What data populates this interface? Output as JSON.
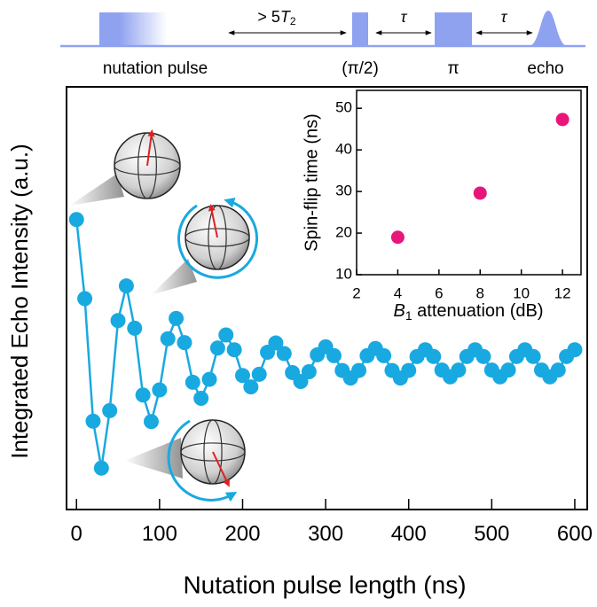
{
  "sequence": {
    "nutation_label": "nutation pulse",
    "wait_prefix": "> 5",
    "wait_symbol": "T",
    "wait_subscript": "2",
    "tau_1": "τ",
    "tau_2": "τ",
    "half_pi_label": "(π/2)",
    "pi_label": "π",
    "echo_label": "echo"
  },
  "chart_data": [
    {
      "type": "line",
      "xlabel": "Nutation pulse length (ns)",
      "ylabel": "Integrated Echo Intensity (a.u.)",
      "x": [
        0,
        10,
        20,
        30,
        40,
        50,
        60,
        70,
        80,
        90,
        100,
        110,
        120,
        130,
        140,
        150,
        160,
        170,
        180,
        190,
        200,
        210,
        220,
        230,
        240,
        250,
        260,
        270,
        280,
        290,
        300,
        310,
        320,
        330,
        340,
        350,
        360,
        370,
        380,
        390,
        400,
        410,
        420,
        430,
        440,
        450,
        460,
        470,
        480,
        490,
        500,
        510,
        520,
        530,
        540,
        550,
        560,
        570,
        580,
        590,
        600
      ],
      "series": [
        {
          "color": "#19a9e1",
          "values": [
            68.6,
            49.9,
            20.9,
            9.8,
            23.4,
            44.7,
            52.9,
            42.9,
            27.1,
            20.8,
            28.3,
            40.4,
            45.2,
            39.5,
            30.1,
            26.3,
            30.8,
            38.2,
            41.3,
            37.8,
            31.7,
            29.0,
            32.0,
            37.2,
            39.4,
            36.9,
            32.4,
            30.3,
            32.6,
            36.6,
            38.5,
            36.4,
            32.9,
            31.1,
            32.9,
            36.4,
            38.1,
            36.4,
            32.9,
            31.1,
            32.9,
            36.2,
            37.8,
            36.2,
            33.0,
            31.4,
            33.0,
            36.2,
            37.8,
            36.2,
            33.0,
            31.4,
            33.0,
            36.2,
            37.8,
            36.2,
            33.0,
            31.4,
            33.0,
            36.2,
            37.8
          ]
        }
      ],
      "xlim": [
        -12,
        615
      ],
      "ylim": [
        0,
        100
      ],
      "xticks": [
        0,
        100,
        200,
        300,
        400,
        500,
        600
      ]
    },
    {
      "type": "scatter",
      "xlabel_symbol": "B",
      "xlabel_subscript": "1",
      "xlabel_rest": " attenuation (dB)",
      "ylabel": "Spin-flip time (ns)",
      "x": [
        4,
        8,
        12
      ],
      "series": [
        {
          "color": "#e8157a",
          "values": [
            19,
            29.6,
            47.3
          ]
        }
      ],
      "xlim": [
        2,
        12.9
      ],
      "ylim": [
        10,
        54.3
      ],
      "xticks": [
        2,
        4,
        6,
        8,
        10,
        12
      ],
      "yticks": [
        10,
        20,
        30,
        40,
        50
      ]
    }
  ]
}
